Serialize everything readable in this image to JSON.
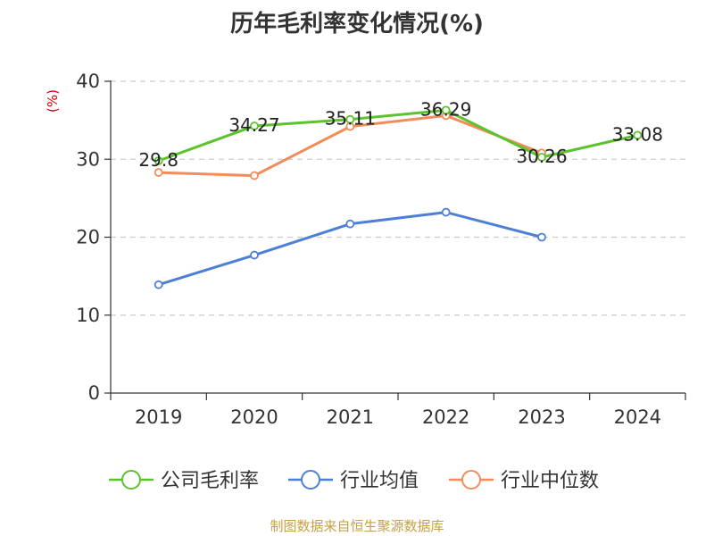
{
  "chart_data": {
    "type": "line",
    "title": "历年毛利率变化情况(%)",
    "ylabel": "(%)",
    "xlabel": "",
    "categories": [
      "2019",
      "2020",
      "2021",
      "2022",
      "2023",
      "2024"
    ],
    "ylim": [
      0,
      40
    ],
    "yticks": [
      0,
      10,
      20,
      30,
      40
    ],
    "grid": true,
    "legend_position": "bottom",
    "series": [
      {
        "name": "公司毛利率",
        "color": "#5cc22e",
        "values": [
          29.8,
          34.27,
          35.11,
          36.29,
          30.26,
          33.08
        ],
        "labels": [
          "29.8",
          "34.27",
          "35.11",
          "36.29",
          "30.26",
          "33.08"
        ]
      },
      {
        "name": "行业均值",
        "color": "#4e7fd6",
        "values": [
          13.9,
          17.7,
          21.7,
          23.2,
          20.0,
          null
        ],
        "labels": null
      },
      {
        "name": "行业中位数",
        "color": "#f28c5a",
        "values": [
          28.3,
          27.9,
          34.2,
          35.6,
          30.8,
          null
        ],
        "labels": null
      }
    ]
  },
  "source_text": "制图数据来自恒生聚源数据库"
}
